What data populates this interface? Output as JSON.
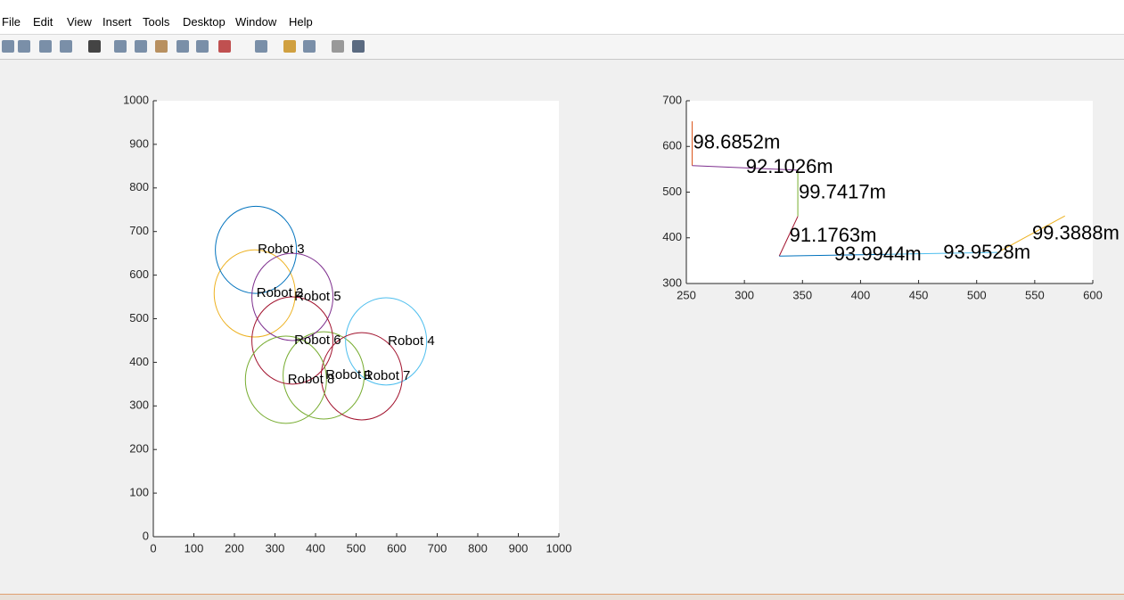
{
  "menu": [
    "File",
    "Edit",
    "View",
    "Insert",
    "Tools",
    "Desktop",
    "Window",
    "Help"
  ],
  "chart_data": [
    {
      "type": "circles",
      "xlim": [
        0,
        1000
      ],
      "ylim": [
        0,
        1000
      ],
      "xticks": [
        0,
        100,
        200,
        300,
        400,
        500,
        600,
        700,
        800,
        900,
        1000
      ],
      "yticks": [
        0,
        100,
        200,
        300,
        400,
        500,
        600,
        700,
        800,
        900,
        1000
      ],
      "robots": [
        {
          "label": "Robot 1",
          "x": 420,
          "y": 370,
          "radius": 100,
          "color": "#77ac30"
        },
        {
          "label": "Robot 2",
          "x": 250,
          "y": 558,
          "radius": 100,
          "color": "#edb120"
        },
        {
          "label": "Robot 3",
          "x": 253,
          "y": 658,
          "radius": 100,
          "color": "#0072bd"
        },
        {
          "label": "Robot 4",
          "x": 574,
          "y": 448,
          "radius": 100,
          "color": "#4dbeee"
        },
        {
          "label": "Robot 5",
          "x": 343,
          "y": 550,
          "radius": 100,
          "color": "#7e2f8e"
        },
        {
          "label": "Robot 6",
          "x": 343,
          "y": 450,
          "radius": 100,
          "color": "#a2142f"
        },
        {
          "label": "Robot 7",
          "x": 514,
          "y": 368,
          "radius": 100,
          "color": "#a2142f"
        },
        {
          "label": "Robot 8",
          "x": 327,
          "y": 360,
          "radius": 100,
          "color": "#77ac30"
        }
      ]
    },
    {
      "type": "segments",
      "xlim": [
        250,
        600
      ],
      "ylim": [
        300,
        700
      ],
      "xticks": [
        250,
        300,
        350,
        400,
        450,
        500,
        550,
        600
      ],
      "yticks": [
        300,
        400,
        500,
        600,
        700
      ],
      "segments": [
        {
          "label": "98.6852m",
          "x": [
            255,
            255
          ],
          "y": [
            655,
            558
          ],
          "color": "#d95319"
        },
        {
          "label": "92.1026m",
          "x": [
            255,
            346
          ],
          "y": [
            558,
            548
          ],
          "color": "#7e2f8e"
        },
        {
          "label": "99.7417m",
          "x": [
            346,
            346
          ],
          "y": [
            548,
            447
          ],
          "color": "#77ac30"
        },
        {
          "label": "91.1763m",
          "x": [
            346,
            330
          ],
          "y": [
            447,
            360
          ],
          "color": "#a2142f"
        },
        {
          "label": "93.9944m",
          "x": [
            330,
            423
          ],
          "y": [
            360,
            364
          ],
          "color": "#0072bd"
        },
        {
          "label": "93.9528m",
          "x": [
            423,
            518
          ],
          "y": [
            364,
            368
          ],
          "color": "#4dbeee"
        },
        {
          "label": "99.3888m",
          "x": [
            518,
            576
          ],
          "y": [
            368,
            448
          ],
          "color": "#edb120"
        }
      ]
    }
  ]
}
